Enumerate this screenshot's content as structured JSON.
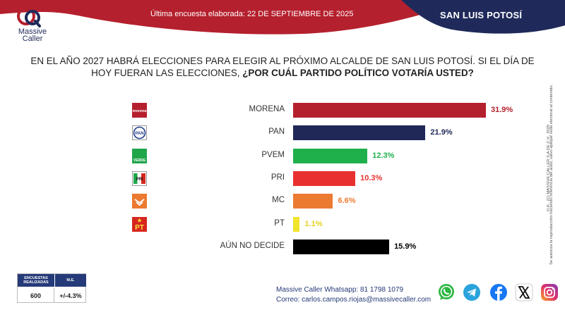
{
  "header": {
    "brand_line1": "Massive",
    "brand_line2": "Caller",
    "survey_date": "Última encuesta elaborada: 22 DE SEPTIEMBRE DE 2025",
    "region": "SAN LUIS POTOSÍ"
  },
  "question": {
    "line1": "EN EL AÑO 2027 HABRÁ ELECCIONES PARA ELEGIR AL PRÓXIMO ALCALDE DE SAN LUIS POTOSÍ. SI EL DÍA DE",
    "line2_plain": "HOY FUERAN LAS ELECCIONES, ",
    "line2_bold": "¿POR CUÁL PARTIDO POLÍTICO VOTARÍA USTED?"
  },
  "legal": {
    "line1": "D.R., (C) MASSIVE CALLER S.A DE C.V., 2025",
    "line2": "Se autoriza la reproducción haciendo referencia del autor, salvo aplique veda electoral al contenido."
  },
  "chart_data": {
    "type": "bar",
    "orientation": "horizontal",
    "categories": [
      "MORENA",
      "PAN",
      "PVEM",
      "PRI",
      "MC",
      "PT",
      "AÚN NO DECIDE"
    ],
    "values": [
      31.9,
      21.9,
      12.3,
      10.3,
      6.6,
      1.1,
      15.9
    ],
    "value_labels": [
      "31.9%",
      "21.9%",
      "12.3%",
      "10.3%",
      "6.6%",
      "1.1%",
      "15.9%"
    ],
    "colors": [
      "#b5202e",
      "#1f2857",
      "#1fb04b",
      "#e8312f",
      "#ec7a31",
      "#f2e32b",
      "#000000"
    ],
    "label_colors": [
      "#b5202e",
      "#1f2857",
      "#1fb04b",
      "#e8312f",
      "#ec7a31",
      "#e3d21e",
      "#000000"
    ],
    "icons": [
      "morena-logo-icon",
      "pan-logo-icon",
      "pvem-logo-icon",
      "pri-logo-icon",
      "mc-logo-icon",
      "pt-logo-icon",
      ""
    ],
    "icon_texts": [
      "morena",
      "PAN",
      "VERDE",
      "PRI",
      "",
      "PT",
      ""
    ],
    "xlim": [
      0,
      32
    ],
    "title": "",
    "xlabel": "",
    "ylabel": ""
  },
  "stats": {
    "header1": "ENCUESTAS REALIZADAS",
    "header2": "M.E.",
    "value1": "600",
    "value2": "+/-4.3%"
  },
  "contact": {
    "whatsapp_label": "Massive Caller Whatsapp:",
    "whatsapp_number": "81 1798 1079",
    "email_label": "Correo:",
    "email": "carlos.campos.riojas@massivecaller.com"
  },
  "social": [
    "whatsapp-icon",
    "telegram-icon",
    "facebook-icon",
    "x-icon",
    "instagram-icon"
  ],
  "colors": {
    "header_red": "#b5202e",
    "header_navy": "#1f2a5a",
    "accent_blue": "#253a78"
  }
}
